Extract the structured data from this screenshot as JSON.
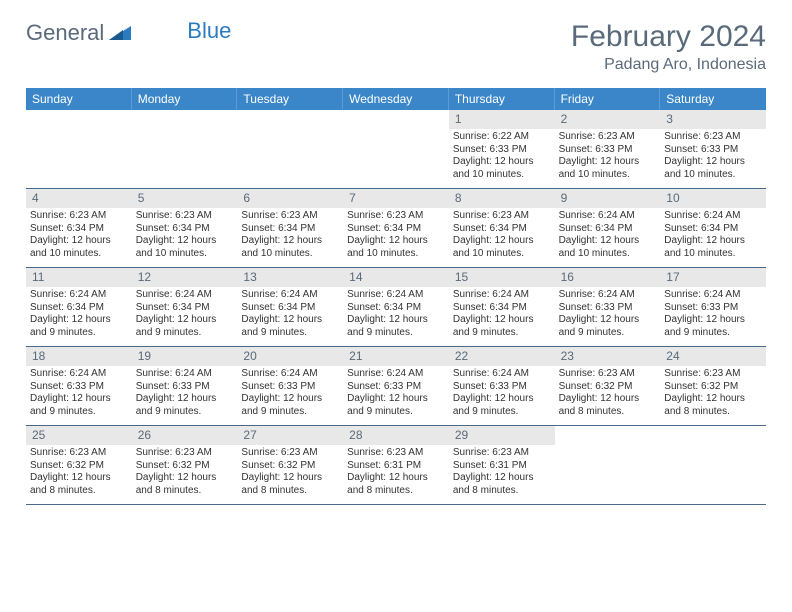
{
  "logo": {
    "text1": "General",
    "text2": "Blue"
  },
  "title": {
    "month": "February 2024",
    "location": "Padang Aro, Indonesia"
  },
  "colors": {
    "header_bg": "#3a86c8",
    "header_text": "#ffffff",
    "daynum_bg": "#e8e8e8",
    "daynum_text": "#5a6a7a",
    "body_text": "#333333",
    "title_text": "#5a6a7a",
    "week_border": "#4a6a8a",
    "logo_blue": "#2b7bbf"
  },
  "dow": [
    "Sunday",
    "Monday",
    "Tuesday",
    "Wednesday",
    "Thursday",
    "Friday",
    "Saturday"
  ],
  "weeks": [
    [
      {
        "n": "",
        "sr": "",
        "ss": "",
        "dl": ""
      },
      {
        "n": "",
        "sr": "",
        "ss": "",
        "dl": ""
      },
      {
        "n": "",
        "sr": "",
        "ss": "",
        "dl": ""
      },
      {
        "n": "",
        "sr": "",
        "ss": "",
        "dl": ""
      },
      {
        "n": "1",
        "sr": "Sunrise: 6:22 AM",
        "ss": "Sunset: 6:33 PM",
        "dl": "Daylight: 12 hours and 10 minutes."
      },
      {
        "n": "2",
        "sr": "Sunrise: 6:23 AM",
        "ss": "Sunset: 6:33 PM",
        "dl": "Daylight: 12 hours and 10 minutes."
      },
      {
        "n": "3",
        "sr": "Sunrise: 6:23 AM",
        "ss": "Sunset: 6:33 PM",
        "dl": "Daylight: 12 hours and 10 minutes."
      }
    ],
    [
      {
        "n": "4",
        "sr": "Sunrise: 6:23 AM",
        "ss": "Sunset: 6:34 PM",
        "dl": "Daylight: 12 hours and 10 minutes."
      },
      {
        "n": "5",
        "sr": "Sunrise: 6:23 AM",
        "ss": "Sunset: 6:34 PM",
        "dl": "Daylight: 12 hours and 10 minutes."
      },
      {
        "n": "6",
        "sr": "Sunrise: 6:23 AM",
        "ss": "Sunset: 6:34 PM",
        "dl": "Daylight: 12 hours and 10 minutes."
      },
      {
        "n": "7",
        "sr": "Sunrise: 6:23 AM",
        "ss": "Sunset: 6:34 PM",
        "dl": "Daylight: 12 hours and 10 minutes."
      },
      {
        "n": "8",
        "sr": "Sunrise: 6:23 AM",
        "ss": "Sunset: 6:34 PM",
        "dl": "Daylight: 12 hours and 10 minutes."
      },
      {
        "n": "9",
        "sr": "Sunrise: 6:24 AM",
        "ss": "Sunset: 6:34 PM",
        "dl": "Daylight: 12 hours and 10 minutes."
      },
      {
        "n": "10",
        "sr": "Sunrise: 6:24 AM",
        "ss": "Sunset: 6:34 PM",
        "dl": "Daylight: 12 hours and 10 minutes."
      }
    ],
    [
      {
        "n": "11",
        "sr": "Sunrise: 6:24 AM",
        "ss": "Sunset: 6:34 PM",
        "dl": "Daylight: 12 hours and 9 minutes."
      },
      {
        "n": "12",
        "sr": "Sunrise: 6:24 AM",
        "ss": "Sunset: 6:34 PM",
        "dl": "Daylight: 12 hours and 9 minutes."
      },
      {
        "n": "13",
        "sr": "Sunrise: 6:24 AM",
        "ss": "Sunset: 6:34 PM",
        "dl": "Daylight: 12 hours and 9 minutes."
      },
      {
        "n": "14",
        "sr": "Sunrise: 6:24 AM",
        "ss": "Sunset: 6:34 PM",
        "dl": "Daylight: 12 hours and 9 minutes."
      },
      {
        "n": "15",
        "sr": "Sunrise: 6:24 AM",
        "ss": "Sunset: 6:34 PM",
        "dl": "Daylight: 12 hours and 9 minutes."
      },
      {
        "n": "16",
        "sr": "Sunrise: 6:24 AM",
        "ss": "Sunset: 6:33 PM",
        "dl": "Daylight: 12 hours and 9 minutes."
      },
      {
        "n": "17",
        "sr": "Sunrise: 6:24 AM",
        "ss": "Sunset: 6:33 PM",
        "dl": "Daylight: 12 hours and 9 minutes."
      }
    ],
    [
      {
        "n": "18",
        "sr": "Sunrise: 6:24 AM",
        "ss": "Sunset: 6:33 PM",
        "dl": "Daylight: 12 hours and 9 minutes."
      },
      {
        "n": "19",
        "sr": "Sunrise: 6:24 AM",
        "ss": "Sunset: 6:33 PM",
        "dl": "Daylight: 12 hours and 9 minutes."
      },
      {
        "n": "20",
        "sr": "Sunrise: 6:24 AM",
        "ss": "Sunset: 6:33 PM",
        "dl": "Daylight: 12 hours and 9 minutes."
      },
      {
        "n": "21",
        "sr": "Sunrise: 6:24 AM",
        "ss": "Sunset: 6:33 PM",
        "dl": "Daylight: 12 hours and 9 minutes."
      },
      {
        "n": "22",
        "sr": "Sunrise: 6:24 AM",
        "ss": "Sunset: 6:33 PM",
        "dl": "Daylight: 12 hours and 9 minutes."
      },
      {
        "n": "23",
        "sr": "Sunrise: 6:23 AM",
        "ss": "Sunset: 6:32 PM",
        "dl": "Daylight: 12 hours and 8 minutes."
      },
      {
        "n": "24",
        "sr": "Sunrise: 6:23 AM",
        "ss": "Sunset: 6:32 PM",
        "dl": "Daylight: 12 hours and 8 minutes."
      }
    ],
    [
      {
        "n": "25",
        "sr": "Sunrise: 6:23 AM",
        "ss": "Sunset: 6:32 PM",
        "dl": "Daylight: 12 hours and 8 minutes."
      },
      {
        "n": "26",
        "sr": "Sunrise: 6:23 AM",
        "ss": "Sunset: 6:32 PM",
        "dl": "Daylight: 12 hours and 8 minutes."
      },
      {
        "n": "27",
        "sr": "Sunrise: 6:23 AM",
        "ss": "Sunset: 6:32 PM",
        "dl": "Daylight: 12 hours and 8 minutes."
      },
      {
        "n": "28",
        "sr": "Sunrise: 6:23 AM",
        "ss": "Sunset: 6:31 PM",
        "dl": "Daylight: 12 hours and 8 minutes."
      },
      {
        "n": "29",
        "sr": "Sunrise: 6:23 AM",
        "ss": "Sunset: 6:31 PM",
        "dl": "Daylight: 12 hours and 8 minutes."
      },
      {
        "n": "",
        "sr": "",
        "ss": "",
        "dl": ""
      },
      {
        "n": "",
        "sr": "",
        "ss": "",
        "dl": ""
      }
    ]
  ]
}
